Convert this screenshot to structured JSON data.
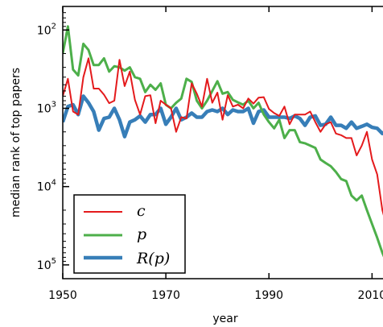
{
  "chart_data": {
    "type": "line",
    "xlabel": "year",
    "ylabel": "median rank of top papers",
    "y_scale": "log",
    "y_inverted": true,
    "xlim": [
      1950,
      2014
    ],
    "ylim": [
      50,
      150000
    ],
    "x_ticks": [
      {
        "value": 1950,
        "label": "1950"
      },
      {
        "value": 1970,
        "label": "1970"
      },
      {
        "value": 1990,
        "label": "1990"
      },
      {
        "value": 2010,
        "label": "2010"
      }
    ],
    "y_ticks": [
      {
        "value": 100,
        "base": "10",
        "exp": "2"
      },
      {
        "value": 1000,
        "base": "10",
        "exp": "3"
      },
      {
        "value": 10000,
        "base": "10",
        "exp": "4"
      },
      {
        "value": 100000,
        "base": "10",
        "exp": "5"
      }
    ],
    "legend": {
      "placement": "lower-left"
    },
    "series": [
      {
        "name": "c",
        "color": "#e41a1c",
        "x": [
          1950,
          1951,
          1952,
          1953,
          1954,
          1955,
          1956,
          1957,
          1958,
          1959,
          1960,
          1961,
          1962,
          1963,
          1964,
          1965,
          1966,
          1967,
          1968,
          1969,
          1970,
          1971,
          1972,
          1973,
          1974,
          1975,
          1976,
          1977,
          1978,
          1979,
          1980,
          1981,
          1982,
          1983,
          1984,
          1985,
          1986,
          1987,
          1988,
          1989,
          1990,
          1991,
          1992,
          1993,
          1994,
          1995,
          1996,
          1997,
          1998,
          1999,
          2000,
          2001,
          2002,
          2003,
          2004,
          2005,
          2006,
          2007,
          2008,
          2009,
          2010,
          2011,
          2012,
          2013,
          2014
        ],
        "values": [
          700,
          420,
          1100,
          1200,
          400,
          230,
          560,
          560,
          670,
          860,
          800,
          240,
          520,
          340,
          780,
          1200,
          700,
          680,
          1550,
          800,
          900,
          1000,
          2000,
          1300,
          1350,
          480,
          650,
          950,
          420,
          850,
          630,
          1400,
          680,
          950,
          900,
          1000,
          750,
          870,
          730,
          720,
          1020,
          1150,
          1250,
          950,
          1600,
          1200,
          1200,
          1200,
          1100,
          1500,
          2000,
          1600,
          1500,
          2100,
          2200,
          2400,
          2400,
          4000,
          3000,
          2000,
          4500,
          7000,
          20000,
          35000,
          55000
        ]
      },
      {
        "name": "p",
        "color": "#4daf4a",
        "x": [
          1950,
          1951,
          1952,
          1953,
          1954,
          1955,
          1956,
          1957,
          1958,
          1959,
          1960,
          1961,
          1962,
          1963,
          1964,
          1965,
          1966,
          1967,
          1968,
          1969,
          1970,
          1971,
          1972,
          1973,
          1974,
          1975,
          1976,
          1977,
          1978,
          1979,
          1980,
          1981,
          1982,
          1983,
          1984,
          1985,
          1986,
          1987,
          1988,
          1989,
          1990,
          1991,
          1992,
          1993,
          1994,
          1995,
          1996,
          1997,
          1998,
          1999,
          2000,
          2001,
          2002,
          2003,
          2004,
          2005,
          2006,
          2007,
          2008,
          2009,
          2010,
          2011,
          2012,
          2013,
          2014
        ],
        "values": [
          200,
          90,
          320,
          380,
          150,
          180,
          280,
          280,
          230,
          340,
          290,
          300,
          330,
          300,
          400,
          420,
          620,
          500,
          580,
          480,
          900,
          1000,
          850,
          750,
          420,
          460,
          800,
          1000,
          800,
          600,
          450,
          650,
          620,
          780,
          840,
          900,
          800,
          1000,
          850,
          1200,
          1500,
          1800,
          1400,
          2400,
          1900,
          1900,
          2700,
          2800,
          3000,
          3200,
          4500,
          5000,
          5500,
          6500,
          8000,
          8500,
          13000,
          15000,
          13000,
          20000,
          30000,
          45000,
          70000,
          100000,
          130000
        ]
      },
      {
        "name": "R(p)",
        "color": "#377eb8",
        "x": [
          1950,
          1951,
          1952,
          1953,
          1954,
          1955,
          1956,
          1957,
          1958,
          1959,
          1960,
          1961,
          1962,
          1963,
          1964,
          1965,
          1966,
          1967,
          1968,
          1969,
          1970,
          1971,
          1972,
          1973,
          1974,
          1975,
          1976,
          1977,
          1978,
          1979,
          1980,
          1981,
          1982,
          1983,
          1984,
          1985,
          1986,
          1987,
          1988,
          1989,
          1990,
          1991,
          1992,
          1993,
          1994,
          1995,
          1996,
          1997,
          1998,
          1999,
          2000,
          2001,
          2002,
          2003,
          2004,
          2005,
          2006,
          2007,
          2008,
          2009,
          2010,
          2011,
          2012,
          2013,
          2014
        ],
        "values": [
          1500,
          950,
          900,
          1200,
          700,
          850,
          1100,
          1900,
          1350,
          1300,
          1000,
          1400,
          2300,
          1500,
          1400,
          1250,
          1500,
          1200,
          1200,
          1000,
          1600,
          1300,
          1000,
          1400,
          1300,
          1150,
          1300,
          1300,
          1100,
          1050,
          1100,
          1000,
          1200,
          1050,
          1100,
          1100,
          1000,
          1550,
          1100,
          1050,
          1300,
          1300,
          1300,
          1300,
          1350,
          1250,
          1350,
          1650,
          1300,
          1250,
          1650,
          1600,
          1300,
          1650,
          1650,
          1800,
          1500,
          1800,
          1700,
          1600,
          1750,
          1800,
          2100,
          1900,
          2200
        ]
      }
    ]
  }
}
